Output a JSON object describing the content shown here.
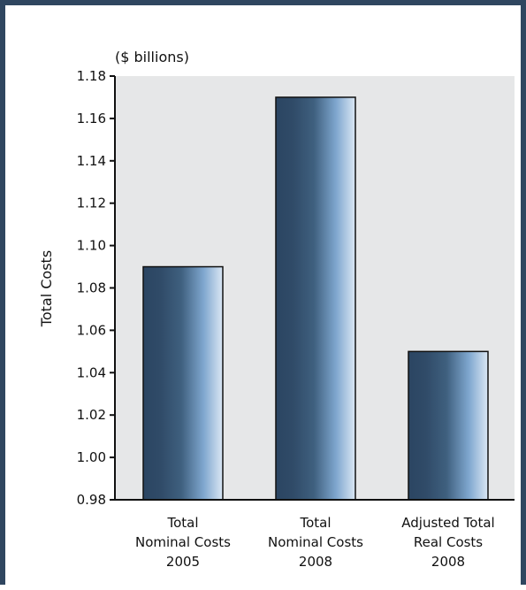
{
  "chart_data": {
    "type": "bar",
    "unit_label": "($ billions)",
    "ylabel": "Total Costs",
    "xlabel": "",
    "categories": [
      [
        "Total",
        "Nominal Costs",
        "2005"
      ],
      [
        "Total",
        "Nominal Costs",
        "2008"
      ],
      [
        "Adjusted Total",
        "Real Costs",
        "2008"
      ]
    ],
    "values": [
      1.09,
      1.17,
      1.05
    ],
    "ylim": [
      0.98,
      1.18
    ],
    "yticks": [
      "1.18",
      "1.16",
      "1.14",
      "1.12",
      "1.10",
      "1.08",
      "1.06",
      "1.04",
      "1.02",
      "1.00",
      "0.98"
    ],
    "grid": false,
    "legend": "none",
    "colors": {
      "frame": "#2f4660",
      "plot_background": "#e6e7e8",
      "bar_dark": "#2b4562",
      "bar_light": "#dbe7f4",
      "axis": "#111111"
    }
  }
}
